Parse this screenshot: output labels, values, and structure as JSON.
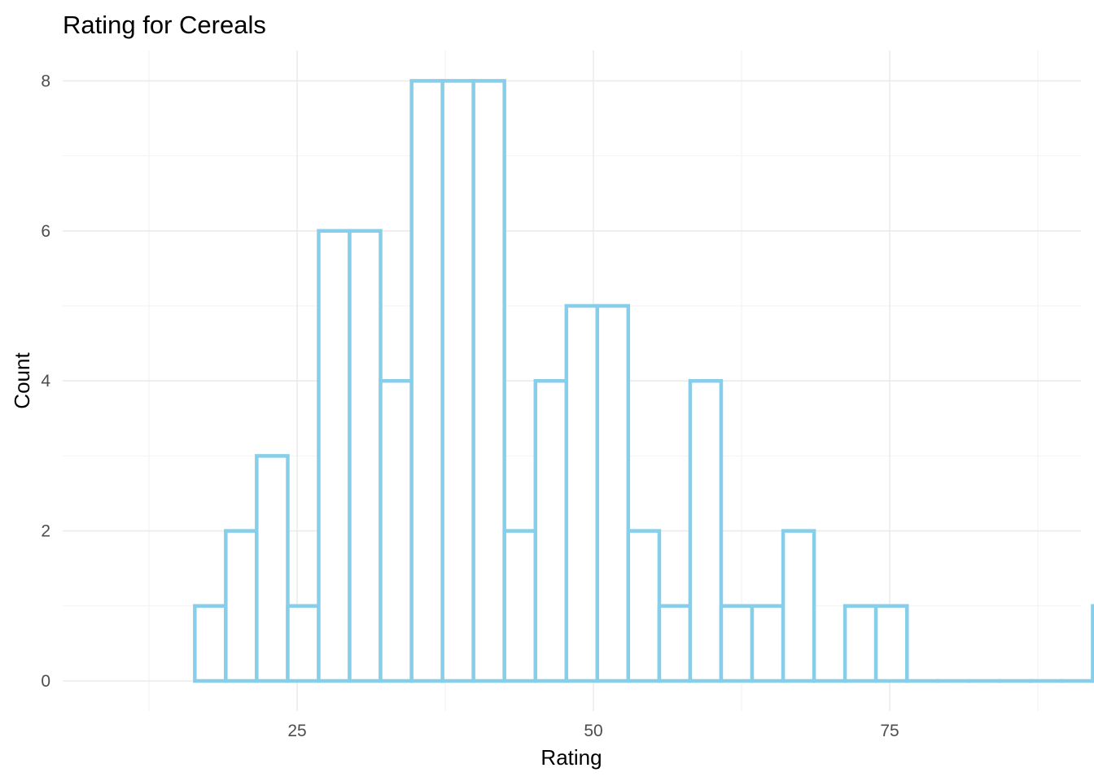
{
  "chart_data": {
    "type": "bar",
    "subtype": "histogram",
    "title": "Rating for Cereals",
    "xlabel": "Rating",
    "ylabel": "Count",
    "xlim": [
      15.25,
      96.75
    ],
    "ylim": [
      0,
      8
    ],
    "x_ticks": [
      25,
      50,
      75
    ],
    "y_ticks": [
      0,
      2,
      4,
      6,
      8
    ],
    "grid": true,
    "bin_width": 2.612,
    "bin_edges": [
      16.37,
      18.98,
      21.59,
      24.21,
      26.82,
      29.43,
      32.04,
      34.66,
      37.27,
      39.88,
      42.49,
      45.11,
      47.72,
      50.33,
      52.94,
      55.56,
      58.17,
      60.78,
      63.39,
      66.01,
      68.62,
      71.23,
      73.84,
      76.46,
      79.07,
      81.68,
      84.29,
      86.91,
      89.52,
      92.13,
      94.74
    ],
    "values": [
      1,
      2,
      3,
      1,
      6,
      6,
      4,
      8,
      8,
      8,
      2,
      4,
      5,
      5,
      2,
      1,
      4,
      1,
      1,
      2,
      0,
      1,
      1,
      0,
      0,
      0,
      0,
      0,
      0,
      1
    ],
    "bar_outline_color": "#87CEEB",
    "bar_fill_color": "#FFFFFF"
  }
}
